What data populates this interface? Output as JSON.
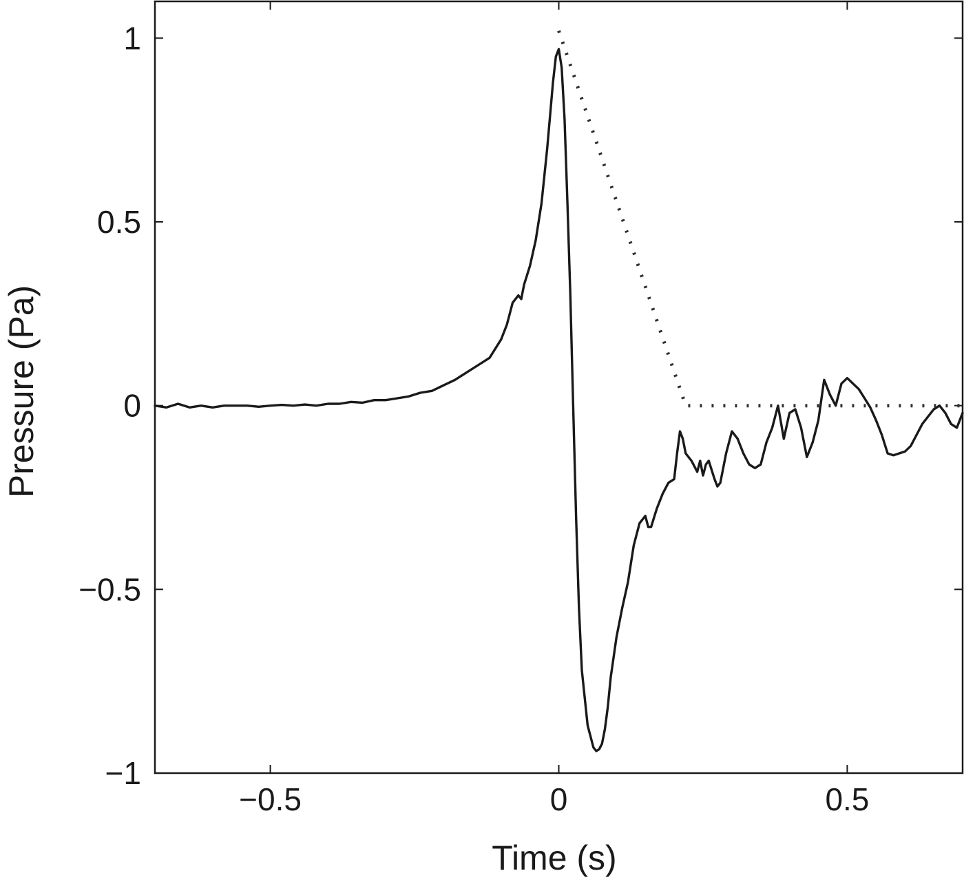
{
  "chart_data": {
    "type": "line",
    "title": "",
    "xlabel": "Time (s)",
    "ylabel": "Pressure (Pa)",
    "xlim": [
      -0.7,
      0.7
    ],
    "ylim": [
      -1,
      1.1
    ],
    "xticks": [
      -0.5,
      0,
      0.5
    ],
    "xtick_labels": [
      "−0.5",
      "0",
      "0.5"
    ],
    "yticks": [
      -1,
      -0.5,
      0,
      0.5,
      1
    ],
    "ytick_labels": [
      "−1",
      "−0.5",
      "0",
      "0.5",
      "1"
    ],
    "grid": false,
    "legend": "none",
    "series": [
      {
        "style": "solid",
        "color": "#1a1a1a",
        "x": [
          -0.7,
          -0.68,
          -0.66,
          -0.64,
          -0.62,
          -0.6,
          -0.58,
          -0.56,
          -0.54,
          -0.52,
          -0.5,
          -0.48,
          -0.46,
          -0.44,
          -0.42,
          -0.4,
          -0.38,
          -0.36,
          -0.34,
          -0.32,
          -0.3,
          -0.28,
          -0.26,
          -0.24,
          -0.22,
          -0.2,
          -0.18,
          -0.16,
          -0.14,
          -0.12,
          -0.1,
          -0.09,
          -0.08,
          -0.07,
          -0.065,
          -0.06,
          -0.05,
          -0.04,
          -0.03,
          -0.02,
          -0.01,
          -0.005,
          0.0,
          0.005,
          0.01,
          0.015,
          0.02,
          0.025,
          0.03,
          0.035,
          0.04,
          0.05,
          0.06,
          0.065,
          0.07,
          0.075,
          0.08,
          0.085,
          0.09,
          0.1,
          0.11,
          0.12,
          0.13,
          0.14,
          0.15,
          0.155,
          0.16,
          0.17,
          0.18,
          0.19,
          0.2,
          0.205,
          0.21,
          0.215,
          0.22,
          0.23,
          0.24,
          0.245,
          0.25,
          0.255,
          0.26,
          0.27,
          0.275,
          0.28,
          0.29,
          0.3,
          0.31,
          0.32,
          0.33,
          0.34,
          0.35,
          0.36,
          0.37,
          0.375,
          0.38,
          0.39,
          0.4,
          0.41,
          0.42,
          0.43,
          0.44,
          0.45,
          0.46,
          0.47,
          0.48,
          0.49,
          0.5,
          0.51,
          0.52,
          0.53,
          0.54,
          0.55,
          0.56,
          0.57,
          0.58,
          0.59,
          0.6,
          0.61,
          0.62,
          0.63,
          0.64,
          0.65,
          0.66,
          0.67,
          0.68,
          0.69,
          0.7
        ],
        "y": [
          0.0,
          -0.005,
          0.005,
          -0.005,
          0.0,
          -0.005,
          0.0,
          0.0,
          0.0,
          -0.003,
          0.0,
          0.002,
          0.0,
          0.003,
          0.0,
          0.005,
          0.005,
          0.01,
          0.008,
          0.015,
          0.015,
          0.02,
          0.025,
          0.035,
          0.04,
          0.055,
          0.07,
          0.09,
          0.11,
          0.13,
          0.18,
          0.22,
          0.28,
          0.3,
          0.29,
          0.33,
          0.38,
          0.45,
          0.55,
          0.7,
          0.88,
          0.95,
          0.97,
          0.92,
          0.78,
          0.55,
          0.3,
          0.0,
          -0.3,
          -0.55,
          -0.72,
          -0.87,
          -0.93,
          -0.94,
          -0.935,
          -0.92,
          -0.88,
          -0.82,
          -0.74,
          -0.63,
          -0.55,
          -0.48,
          -0.38,
          -0.32,
          -0.3,
          -0.33,
          -0.33,
          -0.28,
          -0.24,
          -0.21,
          -0.2,
          -0.13,
          -0.07,
          -0.09,
          -0.13,
          -0.15,
          -0.18,
          -0.15,
          -0.19,
          -0.16,
          -0.15,
          -0.2,
          -0.22,
          -0.21,
          -0.13,
          -0.07,
          -0.09,
          -0.13,
          -0.16,
          -0.17,
          -0.16,
          -0.1,
          -0.06,
          -0.03,
          0.0,
          -0.09,
          -0.02,
          -0.01,
          -0.06,
          -0.14,
          -0.1,
          -0.04,
          0.07,
          0.03,
          0.0,
          0.06,
          0.075,
          0.06,
          0.045,
          0.02,
          -0.005,
          -0.04,
          -0.08,
          -0.13,
          -0.135,
          -0.13,
          -0.125,
          -0.11,
          -0.08,
          -0.05,
          -0.03,
          -0.01,
          0.0,
          -0.02,
          -0.05,
          -0.06,
          -0.02
        ]
      },
      {
        "style": "dotted",
        "color": "#333333",
        "x": [
          0.0,
          0.22,
          0.7
        ],
        "y": [
          1.02,
          0.0,
          0.0
        ]
      }
    ]
  }
}
